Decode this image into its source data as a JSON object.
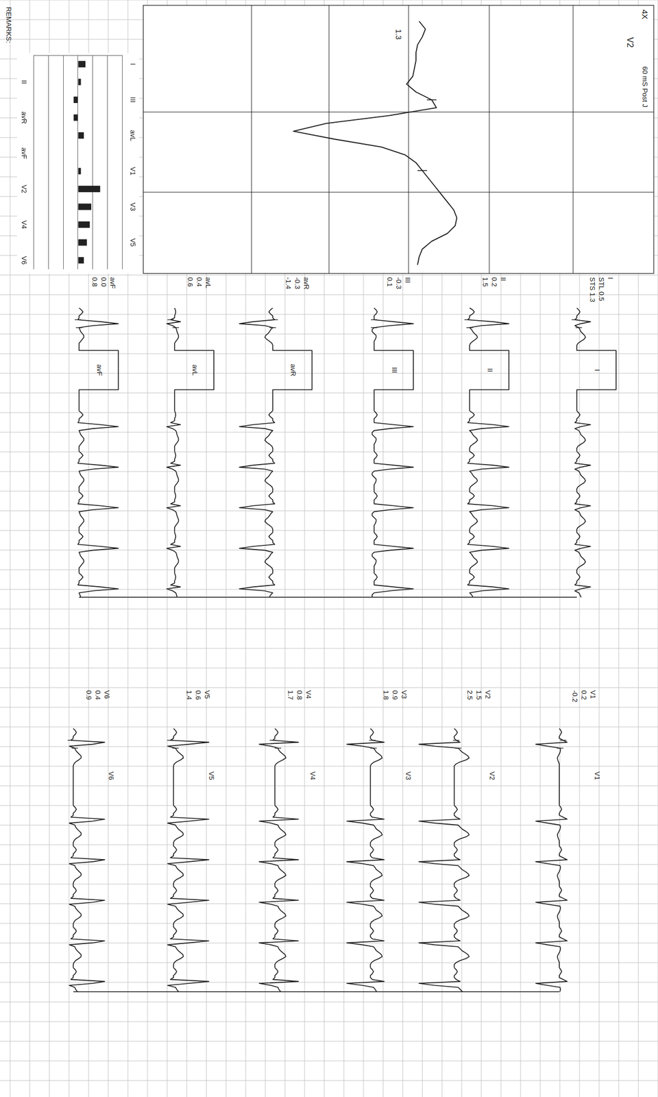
{
  "magnified_beat": {
    "lead": "V2",
    "value": 1.3,
    "gain": {
      "value": 4,
      "label": "4X"
    },
    "caption": "60 mS Post J",
    "step_ms": 20,
    "samples_mv": [
      0.04,
      0.08,
      0.06,
      0.03,
      0.02,
      0.02,
      0.01,
      0.0,
      -0.04,
      0.02,
      0.12,
      0.15,
      -0.15,
      -0.55,
      -0.76,
      -0.5,
      -0.2,
      -0.05,
      0.02,
      0.06,
      0.1,
      0.14,
      0.18,
      0.22,
      0.26,
      0.28,
      0.27,
      0.22,
      0.12,
      0.06,
      0.04,
      0.03
    ],
    "markers_ms": [
      200,
      380
    ]
  },
  "ecg": {
    "mm_per_mv": 10,
    "mm_per_s": 25,
    "step_ms": 20,
    "calibration_mv": 1,
    "calibration_ms": 400,
    "measure_points_ms": [
      120,
      200
    ],
    "strip_ms": 2080,
    "beat_onsets_ms": [
      183,
      596,
      1009,
      1422,
      1835
    ],
    "measure_headers": [
      "STL",
      "STS"
    ],
    "limb_leads": [
      {
        "lead": "I",
        "stl": 0.5,
        "sts": 1.3,
        "beat_mv": [
          0,
          0.05,
          0.08,
          0.05,
          0,
          0,
          -0.05,
          0.35,
          0.1,
          -0.05,
          0.05,
          0.08,
          0.1,
          0.15,
          0.2,
          0.22,
          0.18,
          0.1,
          0.03,
          0,
          0
        ]
      },
      {
        "lead": "II",
        "stl": 0.2,
        "sts": 1.5,
        "beat_mv": [
          0,
          0.08,
          0.12,
          0.08,
          0,
          0,
          -0.05,
          0.6,
          1.0,
          0.3,
          0,
          0.05,
          0.08,
          0.12,
          0.18,
          0.2,
          0.15,
          0.08,
          0.02,
          0,
          0
        ]
      },
      {
        "lead": "III",
        "stl": -0.3,
        "sts": 0.1,
        "beat_mv": [
          0,
          0.05,
          0.08,
          0.05,
          0,
          0,
          0,
          0.5,
          1.0,
          0.4,
          0,
          -0.05,
          -0.05,
          0,
          0.05,
          0.05,
          0.03,
          0,
          0,
          0,
          0
        ]
      },
      {
        "lead": "avR",
        "stl": -0.3,
        "sts": -1.4,
        "beat_mv": [
          0,
          -0.06,
          -0.1,
          -0.06,
          0,
          0,
          0.05,
          -0.5,
          -0.85,
          -0.2,
          0,
          -0.05,
          -0.08,
          -0.12,
          -0.18,
          -0.2,
          -0.15,
          -0.08,
          -0.02,
          0,
          0
        ]
      },
      {
        "lead": "avL",
        "stl": 0.4,
        "sts": 0.6,
        "beat_mv": [
          0,
          0.02,
          0.03,
          0.02,
          0,
          0,
          -0.1,
          0.15,
          -0.2,
          -0.05,
          0.03,
          0.05,
          0.06,
          0.08,
          0.1,
          0.1,
          0.07,
          0.03,
          0,
          0,
          0
        ]
      },
      {
        "lead": "avF",
        "stl": 0.0,
        "sts": 0.8,
        "beat_mv": [
          0,
          0.06,
          0.1,
          0.06,
          0,
          0,
          -0.03,
          0.55,
          1.0,
          0.35,
          0,
          0.02,
          0.04,
          0.08,
          0.12,
          0.12,
          0.08,
          0.04,
          0,
          0,
          0
        ]
      }
    ],
    "chest_leads": [
      {
        "lead": "V1",
        "stl": 0.2,
        "sts": -0.2,
        "beat_mv": [
          0,
          0.04,
          0.06,
          0.03,
          0,
          0,
          0.1,
          0.2,
          -0.6,
          -0.3,
          0.02,
          0.03,
          0.02,
          0,
          -0.03,
          -0.05,
          -0.04,
          -0.02,
          0,
          0,
          0
        ]
      },
      {
        "lead": "V2",
        "stl": 1.5,
        "sts": 2.5,
        "beat_mv": [
          0,
          0.05,
          0.08,
          0.05,
          0,
          0,
          0.05,
          0.15,
          -0.9,
          -0.5,
          0.1,
          0.15,
          0.2,
          0.28,
          0.35,
          0.38,
          0.3,
          0.15,
          0.05,
          0,
          0
        ]
      },
      {
        "lead": "V3",
        "stl": 0.9,
        "sts": 1.8,
        "beat_mv": [
          0,
          0.05,
          0.08,
          0.05,
          0,
          0,
          0.05,
          0.35,
          -0.6,
          -0.2,
          0.08,
          0.12,
          0.15,
          0.22,
          0.28,
          0.3,
          0.22,
          0.1,
          0.03,
          0,
          0
        ]
      },
      {
        "lead": "V4",
        "stl": 0.8,
        "sts": 1.7,
        "beat_mv": [
          0,
          0.05,
          0.08,
          0.05,
          0,
          0,
          -0.05,
          0.6,
          -0.4,
          -0.1,
          0.08,
          0.1,
          0.14,
          0.2,
          0.26,
          0.28,
          0.2,
          0.1,
          0.03,
          0,
          0
        ]
      },
      {
        "lead": "V5",
        "stl": 0.6,
        "sts": 1.4,
        "beat_mv": [
          0,
          0.05,
          0.08,
          0.05,
          0,
          0,
          -0.08,
          0.9,
          0.4,
          -0.15,
          0.05,
          0.08,
          0.12,
          0.18,
          0.24,
          0.25,
          0.18,
          0.08,
          0.02,
          0,
          0
        ]
      },
      {
        "lead": "V6",
        "stl": 0.4,
        "sts": 0.9,
        "beat_mv": [
          0,
          0.05,
          0.08,
          0.05,
          0,
          0,
          -0.06,
          0.8,
          0.5,
          -0.1,
          0.04,
          0.06,
          0.1,
          0.15,
          0.2,
          0.2,
          0.14,
          0.06,
          0.02,
          0,
          0
        ]
      }
    ]
  },
  "chart_data": {
    "type": "bar",
    "categories": [
      "I",
      "II",
      "III",
      "avR",
      "avL",
      "avF",
      "V1",
      "V2",
      "V3",
      "V4",
      "V5",
      "V6"
    ],
    "values": [
      0.5,
      0.2,
      -0.3,
      -0.3,
      0.4,
      0.0,
      0.2,
      1.5,
      0.9,
      0.8,
      0.6,
      0.4
    ],
    "color": "#222222",
    "ylim": [
      -3,
      3
    ],
    "yticks": [
      -3,
      -2,
      -1,
      0,
      1,
      2,
      3
    ],
    "grid": true,
    "tick_labels": "x"
  },
  "remarks": "REMARKS:"
}
